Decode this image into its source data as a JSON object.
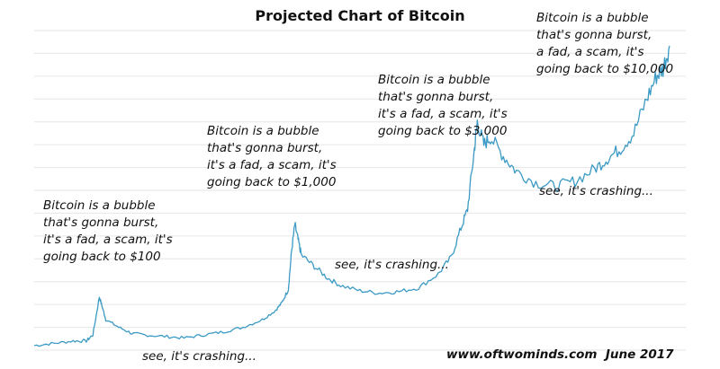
{
  "chart_data": {
    "type": "line",
    "title": "Projected Chart of Bitcoin",
    "xlabel": "",
    "ylabel": "",
    "grid": true,
    "series": [
      {
        "values": [
          [
            0,
            6
          ],
          [
            0.03,
            9
          ],
          [
            0.06,
            12
          ],
          [
            0.08,
            12
          ],
          [
            0.09,
            20
          ],
          [
            0.1,
            70
          ],
          [
            0.105,
            55
          ],
          [
            0.11,
            40
          ],
          [
            0.13,
            30
          ],
          [
            0.15,
            22
          ],
          [
            0.17,
            20
          ],
          [
            0.2,
            18
          ],
          [
            0.23,
            16
          ],
          [
            0.26,
            20
          ],
          [
            0.29,
            24
          ],
          [
            0.32,
            30
          ],
          [
            0.35,
            40
          ],
          [
            0.37,
            52
          ],
          [
            0.38,
            62
          ],
          [
            0.39,
            80
          ],
          [
            0.395,
            130
          ],
          [
            0.4,
            165
          ],
          [
            0.405,
            145
          ],
          [
            0.41,
            125
          ],
          [
            0.43,
            110
          ],
          [
            0.45,
            95
          ],
          [
            0.47,
            85
          ],
          [
            0.5,
            78
          ],
          [
            0.53,
            75
          ],
          [
            0.56,
            77
          ],
          [
            0.59,
            82
          ],
          [
            0.62,
            100
          ],
          [
            0.64,
            122
          ],
          [
            0.655,
            160
          ],
          [
            0.665,
            185
          ],
          [
            0.675,
            260
          ],
          [
            0.68,
            300
          ],
          [
            0.69,
            270
          ],
          [
            0.7,
            280
          ],
          [
            0.72,
            255
          ],
          [
            0.74,
            235
          ],
          [
            0.77,
            220
          ],
          [
            0.8,
            215
          ],
          [
            0.83,
            222
          ],
          [
            0.86,
            238
          ],
          [
            0.88,
            252
          ],
          [
            0.9,
            265
          ],
          [
            0.92,
            285
          ],
          [
            0.94,
            330
          ],
          [
            0.955,
            360
          ],
          [
            0.965,
            370
          ],
          [
            0.975,
            400
          ]
        ]
      }
    ],
    "annotations": [
      {
        "text": "Bitcoin is a bubble\nthat's gonna burst,\nit's a fad, a scam, it's\ngoing back to $100"
      },
      {
        "text": "Bitcoin is a bubble\nthat's gonna burst,\nit's a fad, a scam, it's\ngoing back to $1,000"
      },
      {
        "text": "Bitcoin is a bubble\nthat's gonna burst,\nit's a fad, a scam, it's\ngoing back to $3,000"
      },
      {
        "text": "Bitcoin is a bubble\nthat's gonna burst,\na fad, a scam, it's\ngoing back to $10,000"
      }
    ],
    "crash_labels": [
      "see, it's crashing...",
      "see, it's crashing...",
      "see, it's crashing..."
    ],
    "credit": "www.oftwominds.com  June 2017",
    "line_color": "#3b9ac4",
    "grid_color": "#e6e6e6"
  }
}
